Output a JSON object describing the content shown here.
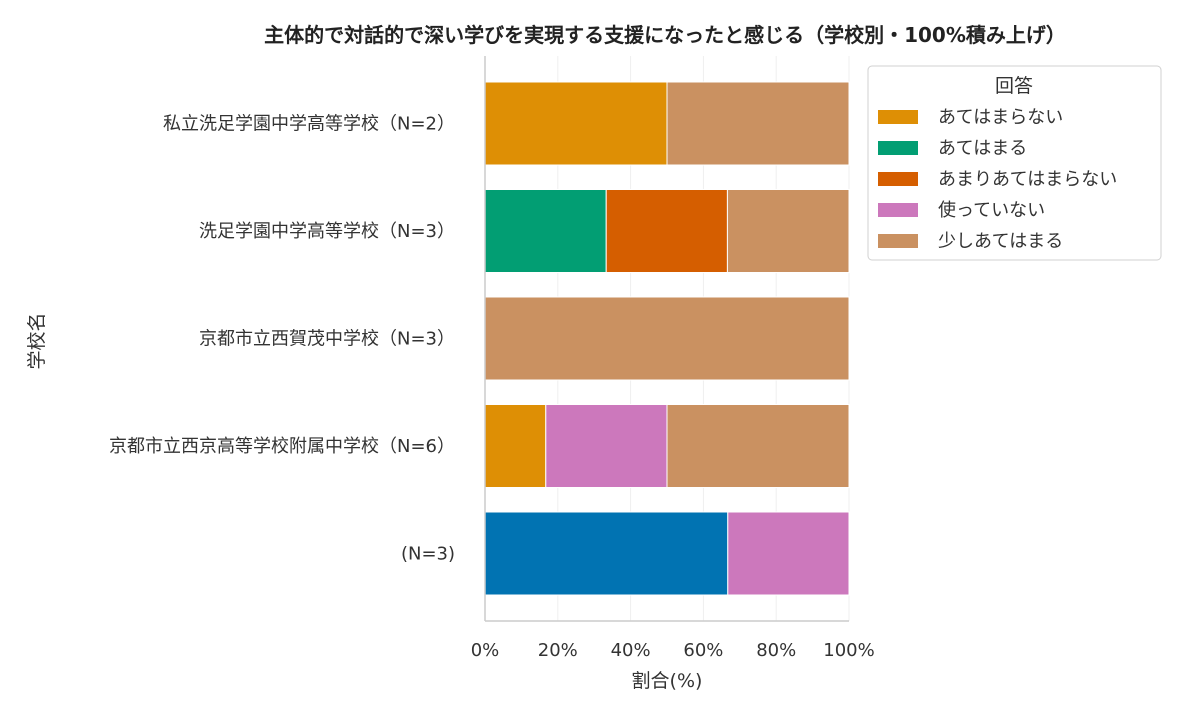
{
  "chart_data": {
    "type": "bar",
    "orientation": "horizontal",
    "stacked": "percent",
    "title": "主体的で対話的で深い学びを実現する支援になったと感じる（学校別・100%積み上げ）",
    "xlabel": "割合(%)",
    "ylabel": "学校名",
    "xlim": [
      0,
      100
    ],
    "x_ticks": [
      "0%",
      "20%",
      "40%",
      "60%",
      "80%",
      "100%"
    ],
    "grid": "vertical",
    "legend": {
      "title": "回答",
      "placement": "outside-top-right"
    },
    "categories": [
      "私立洗足学園中学高等学校（N=2）",
      "洗足学園中学高等学校（N=3）",
      "京都市立西賀茂中学校（N=3）",
      "京都市立西京高等学校附属中学校（N=6）",
      "(N=3)"
    ],
    "series": [
      {
        "name": "",
        "color": "#0173b2",
        "values": [
          0,
          0,
          0,
          0,
          66.7
        ],
        "in_legend": false
      },
      {
        "name": "あてはまらない",
        "color": "#de8f05",
        "values": [
          50,
          0,
          0,
          16.7,
          0
        ],
        "in_legend": true
      },
      {
        "name": "あてはまる",
        "color": "#029e73",
        "values": [
          0,
          33.3,
          0,
          0,
          0
        ],
        "in_legend": true
      },
      {
        "name": "あまりあてはまらない",
        "color": "#d55e00",
        "values": [
          0,
          33.3,
          0,
          0,
          0
        ],
        "in_legend": true
      },
      {
        "name": "使っていない",
        "color": "#cc78bc",
        "values": [
          0,
          0,
          0,
          33.3,
          33.3
        ],
        "in_legend": true
      },
      {
        "name": "少しあてはまる",
        "color": "#ca9161",
        "values": [
          50,
          33.4,
          100,
          50,
          0
        ],
        "in_legend": true
      }
    ]
  }
}
